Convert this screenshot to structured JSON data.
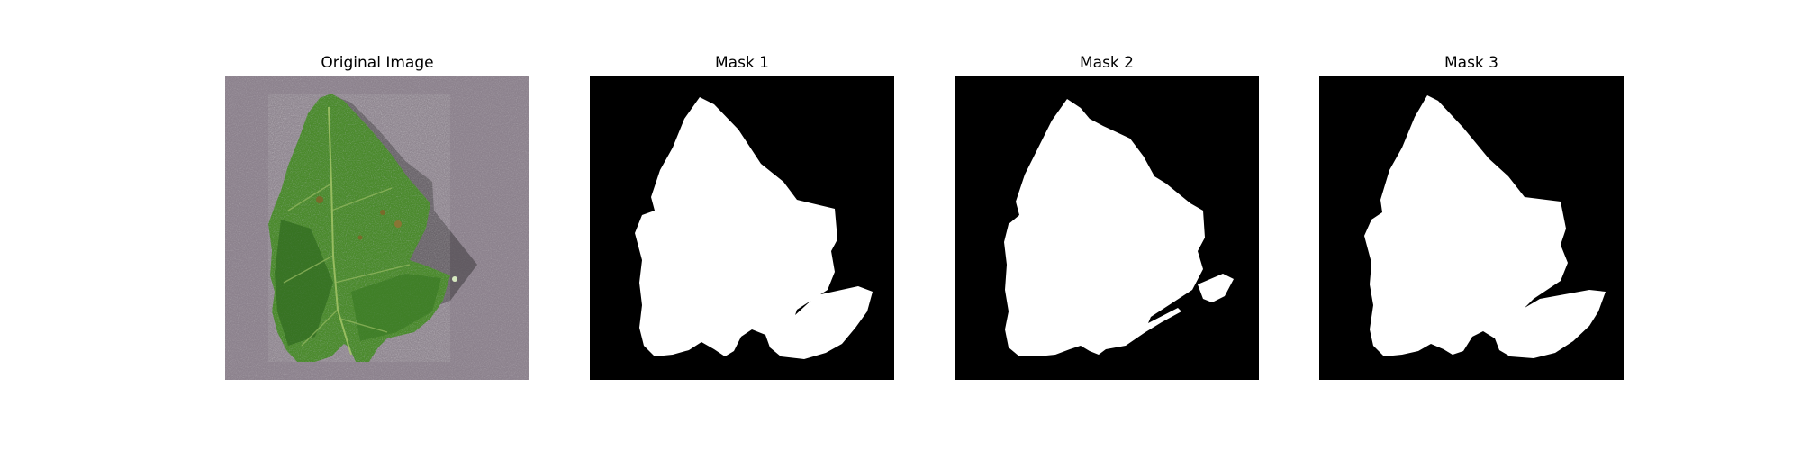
{
  "panels": [
    {
      "title": "Original Image"
    },
    {
      "title": "Mask 1"
    },
    {
      "title": "Mask 2"
    },
    {
      "title": "Mask 3"
    }
  ],
  "colors": {
    "background_gray": "#8f8590",
    "leaf_green": "#4d8c2e",
    "leaf_dark": "#2f6a1f",
    "mask_fill": "#ffffff",
    "mask_bg": "#000000"
  }
}
